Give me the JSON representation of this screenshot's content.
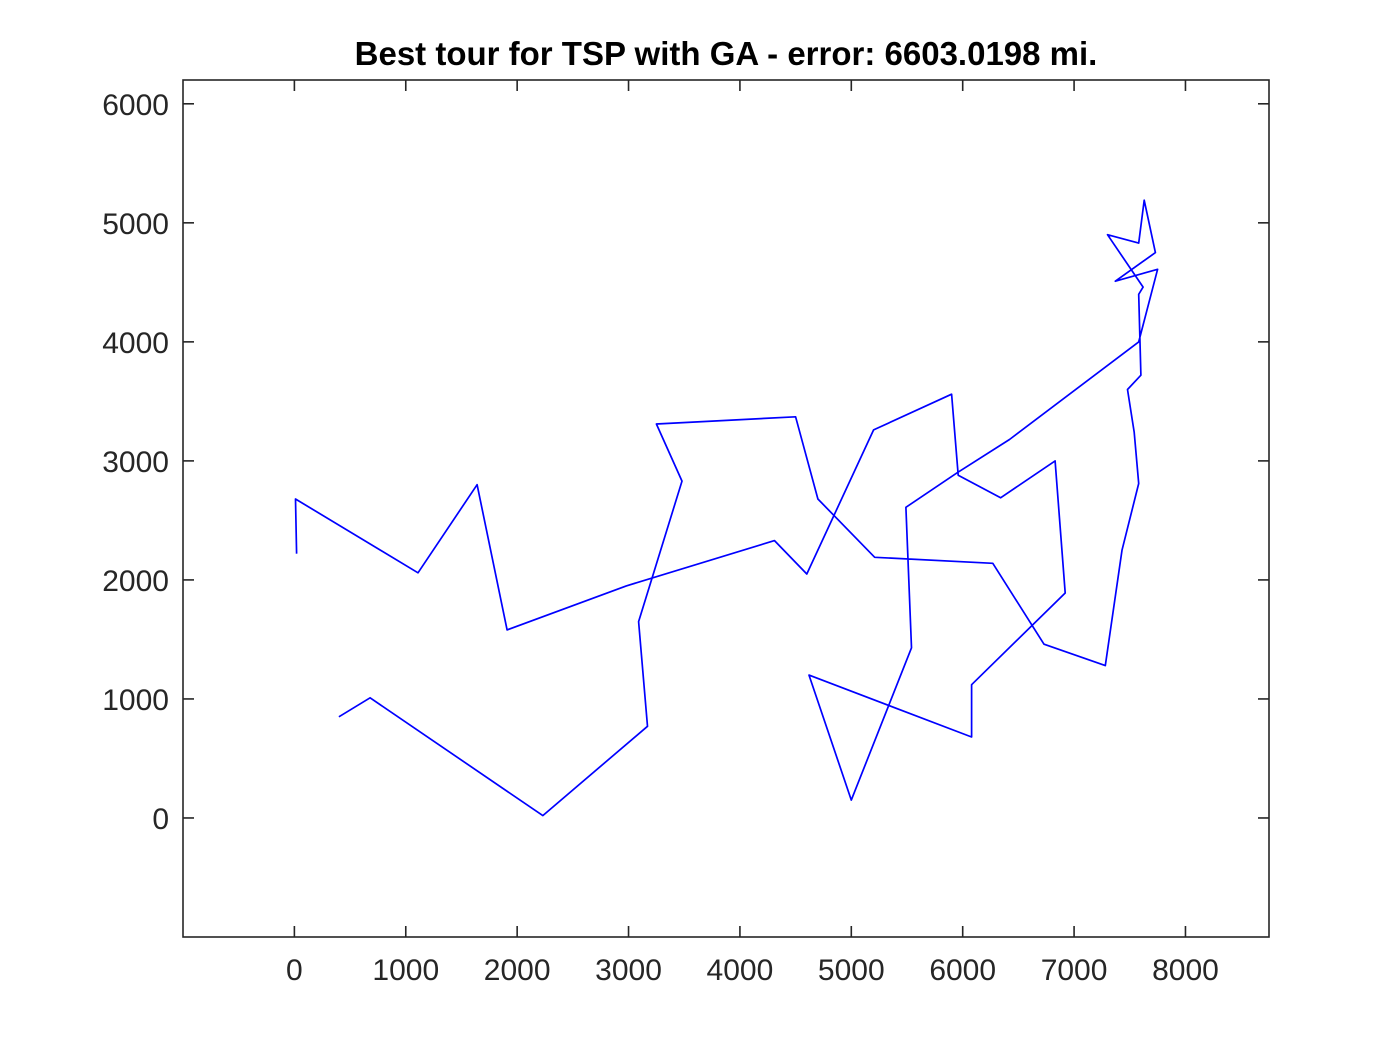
{
  "chart_data": {
    "type": "line",
    "title": "Best tour for TSP with GA - error: 6603.0198 mi.",
    "xlabel": "",
    "ylabel": "",
    "xlim": [
      -1000,
      8750
    ],
    "ylim": [
      -1000,
      6200
    ],
    "xticks": [
      0,
      1000,
      2000,
      3000,
      4000,
      5000,
      6000,
      7000,
      8000
    ],
    "yticks": [
      0,
      1000,
      2000,
      3000,
      4000,
      5000,
      6000
    ],
    "xtick_labels": [
      "0",
      "1000",
      "2000",
      "3000",
      "4000",
      "5000",
      "6000",
      "7000",
      "8000"
    ],
    "ytick_labels": [
      "0",
      "1000",
      "2000",
      "3000",
      "4000",
      "5000",
      "6000"
    ],
    "grid": false,
    "series": [
      {
        "color": "#0000ff",
        "x": [
          20,
          10,
          1110,
          1640,
          1910,
          2980,
          4310,
          4600,
          5200,
          5900,
          5960,
          6340,
          6830,
          6920,
          6080,
          6080,
          4620,
          5000,
          5540,
          5490,
          5950,
          6420,
          7580,
          7750,
          7370,
          7730,
          7630,
          7580,
          7300,
          7620,
          7580,
          7600,
          7480,
          7540,
          7580,
          7430,
          7280,
          6730,
          6270,
          5210,
          4700,
          4500,
          3250,
          3480,
          3090,
          3170,
          2230,
          680,
          400
        ],
        "y": [
          2220,
          2680,
          2060,
          2800,
          1580,
          1950,
          2330,
          2050,
          3260,
          3560,
          2880,
          2690,
          3000,
          1890,
          1120,
          680,
          1200,
          150,
          1430,
          2610,
          2900,
          3180,
          4000,
          4610,
          4510,
          4750,
          5190,
          4830,
          4900,
          4460,
          4400,
          3720,
          3600,
          3240,
          2810,
          2250,
          1280,
          1460,
          2140,
          2190,
          2680,
          3370,
          3310,
          2830,
          1650,
          770,
          20,
          1010,
          850
        ]
      }
    ]
  }
}
